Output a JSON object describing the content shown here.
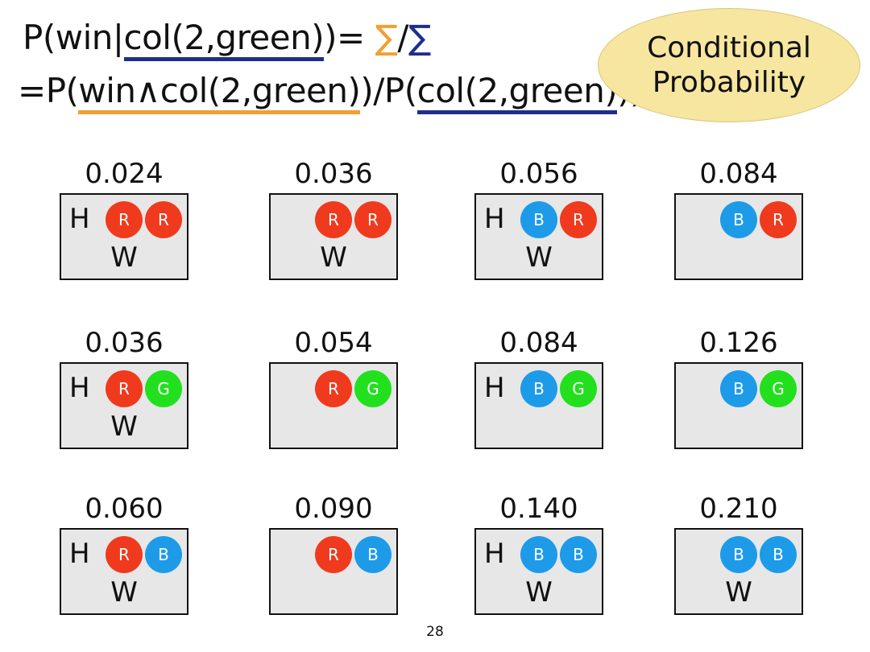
{
  "formula": {
    "line1": {
      "prefix": "P(win|",
      "cond": "col(2,green)",
      "rest": ")= ",
      "sigma1": "∑",
      "slash": "/",
      "sigma2": "∑"
    },
    "line2": {
      "prefix": "=P(",
      "joint": "win∧col(2,green)",
      "mid": ")/P(",
      "marg": "col(2,green)",
      "end": "))"
    }
  },
  "badge": {
    "line1": "Conditional",
    "line2": "Probability"
  },
  "colors": {
    "R": "#f03a1e",
    "G": "#22e01e",
    "B": "#1e9be8",
    "underline_joint": "#f0a030",
    "underline_marginal": "#1f2e8c"
  },
  "cells": [
    {
      "prob": "0.024",
      "h": "H",
      "w": "W",
      "ball1": "R",
      "ball2": "R"
    },
    {
      "prob": "0.036",
      "h": "",
      "w": "W",
      "ball1": "R",
      "ball2": "R"
    },
    {
      "prob": "0.056",
      "h": "H",
      "w": "W",
      "ball1": "B",
      "ball2": "R"
    },
    {
      "prob": "0.084",
      "h": "",
      "w": "",
      "ball1": "B",
      "ball2": "R"
    },
    {
      "prob": "0.036",
      "h": "H",
      "w": "W",
      "ball1": "R",
      "ball2": "G"
    },
    {
      "prob": "0.054",
      "h": "",
      "w": "",
      "ball1": "R",
      "ball2": "G"
    },
    {
      "prob": "0.084",
      "h": "H",
      "w": "",
      "ball1": "B",
      "ball2": "G"
    },
    {
      "prob": "0.126",
      "h": "",
      "w": "",
      "ball1": "B",
      "ball2": "G"
    },
    {
      "prob": "0.060",
      "h": "H",
      "w": "W",
      "ball1": "R",
      "ball2": "B"
    },
    {
      "prob": "0.090",
      "h": "",
      "w": "",
      "ball1": "R",
      "ball2": "B"
    },
    {
      "prob": "0.140",
      "h": "H",
      "w": "W",
      "ball1": "B",
      "ball2": "B"
    },
    {
      "prob": "0.210",
      "h": "",
      "w": "W",
      "ball1": "B",
      "ball2": "B"
    }
  ],
  "page_number": "28"
}
